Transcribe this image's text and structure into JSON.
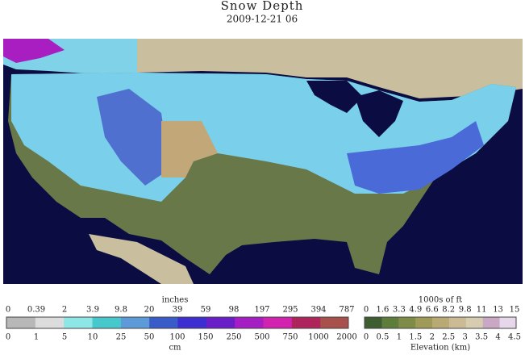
{
  "header": {
    "title": "Snow Depth",
    "subtitle": "2009-12-21 06"
  },
  "snow_legend": {
    "top_label": "inches",
    "bottom_label": "cm",
    "top_ticks": [
      "0",
      "0.39",
      "2",
      "3.9",
      "9.8",
      "20",
      "39",
      "59",
      "98",
      "197",
      "295",
      "394",
      "787"
    ],
    "bottom_ticks": [
      "0",
      "1",
      "5",
      "10",
      "25",
      "50",
      "100",
      "150",
      "250",
      "500",
      "750",
      "1000",
      "2000"
    ],
    "colors": [
      "#b8b8b8",
      "#dcdcdc",
      "#8ee6e6",
      "#48c8cc",
      "#5c9ad8",
      "#3a5cc8",
      "#3c2ed0",
      "#6a1ec8",
      "#a41ec4",
      "#d222b0",
      "#b0245c",
      "#a8504c"
    ]
  },
  "elevation_legend": {
    "top_label": "1000s of ft",
    "bottom_label": "Elevation (km)",
    "top_ticks": [
      "0",
      "1.6",
      "3.3",
      "4.9",
      "6.6",
      "8.2",
      "9.8",
      "11",
      "13",
      "15"
    ],
    "bottom_ticks": [
      "0",
      "0.5",
      "1",
      "1.5",
      "2",
      "2.5",
      "3",
      "3.5",
      "4",
      "4.5"
    ],
    "colors": [
      "#3e5e32",
      "#5e7c3c",
      "#7e8c48",
      "#a09a58",
      "#b8aa74",
      "#cbbb94",
      "#d6ccb0",
      "#c8a8c4",
      "#e6d8ea"
    ]
  }
}
